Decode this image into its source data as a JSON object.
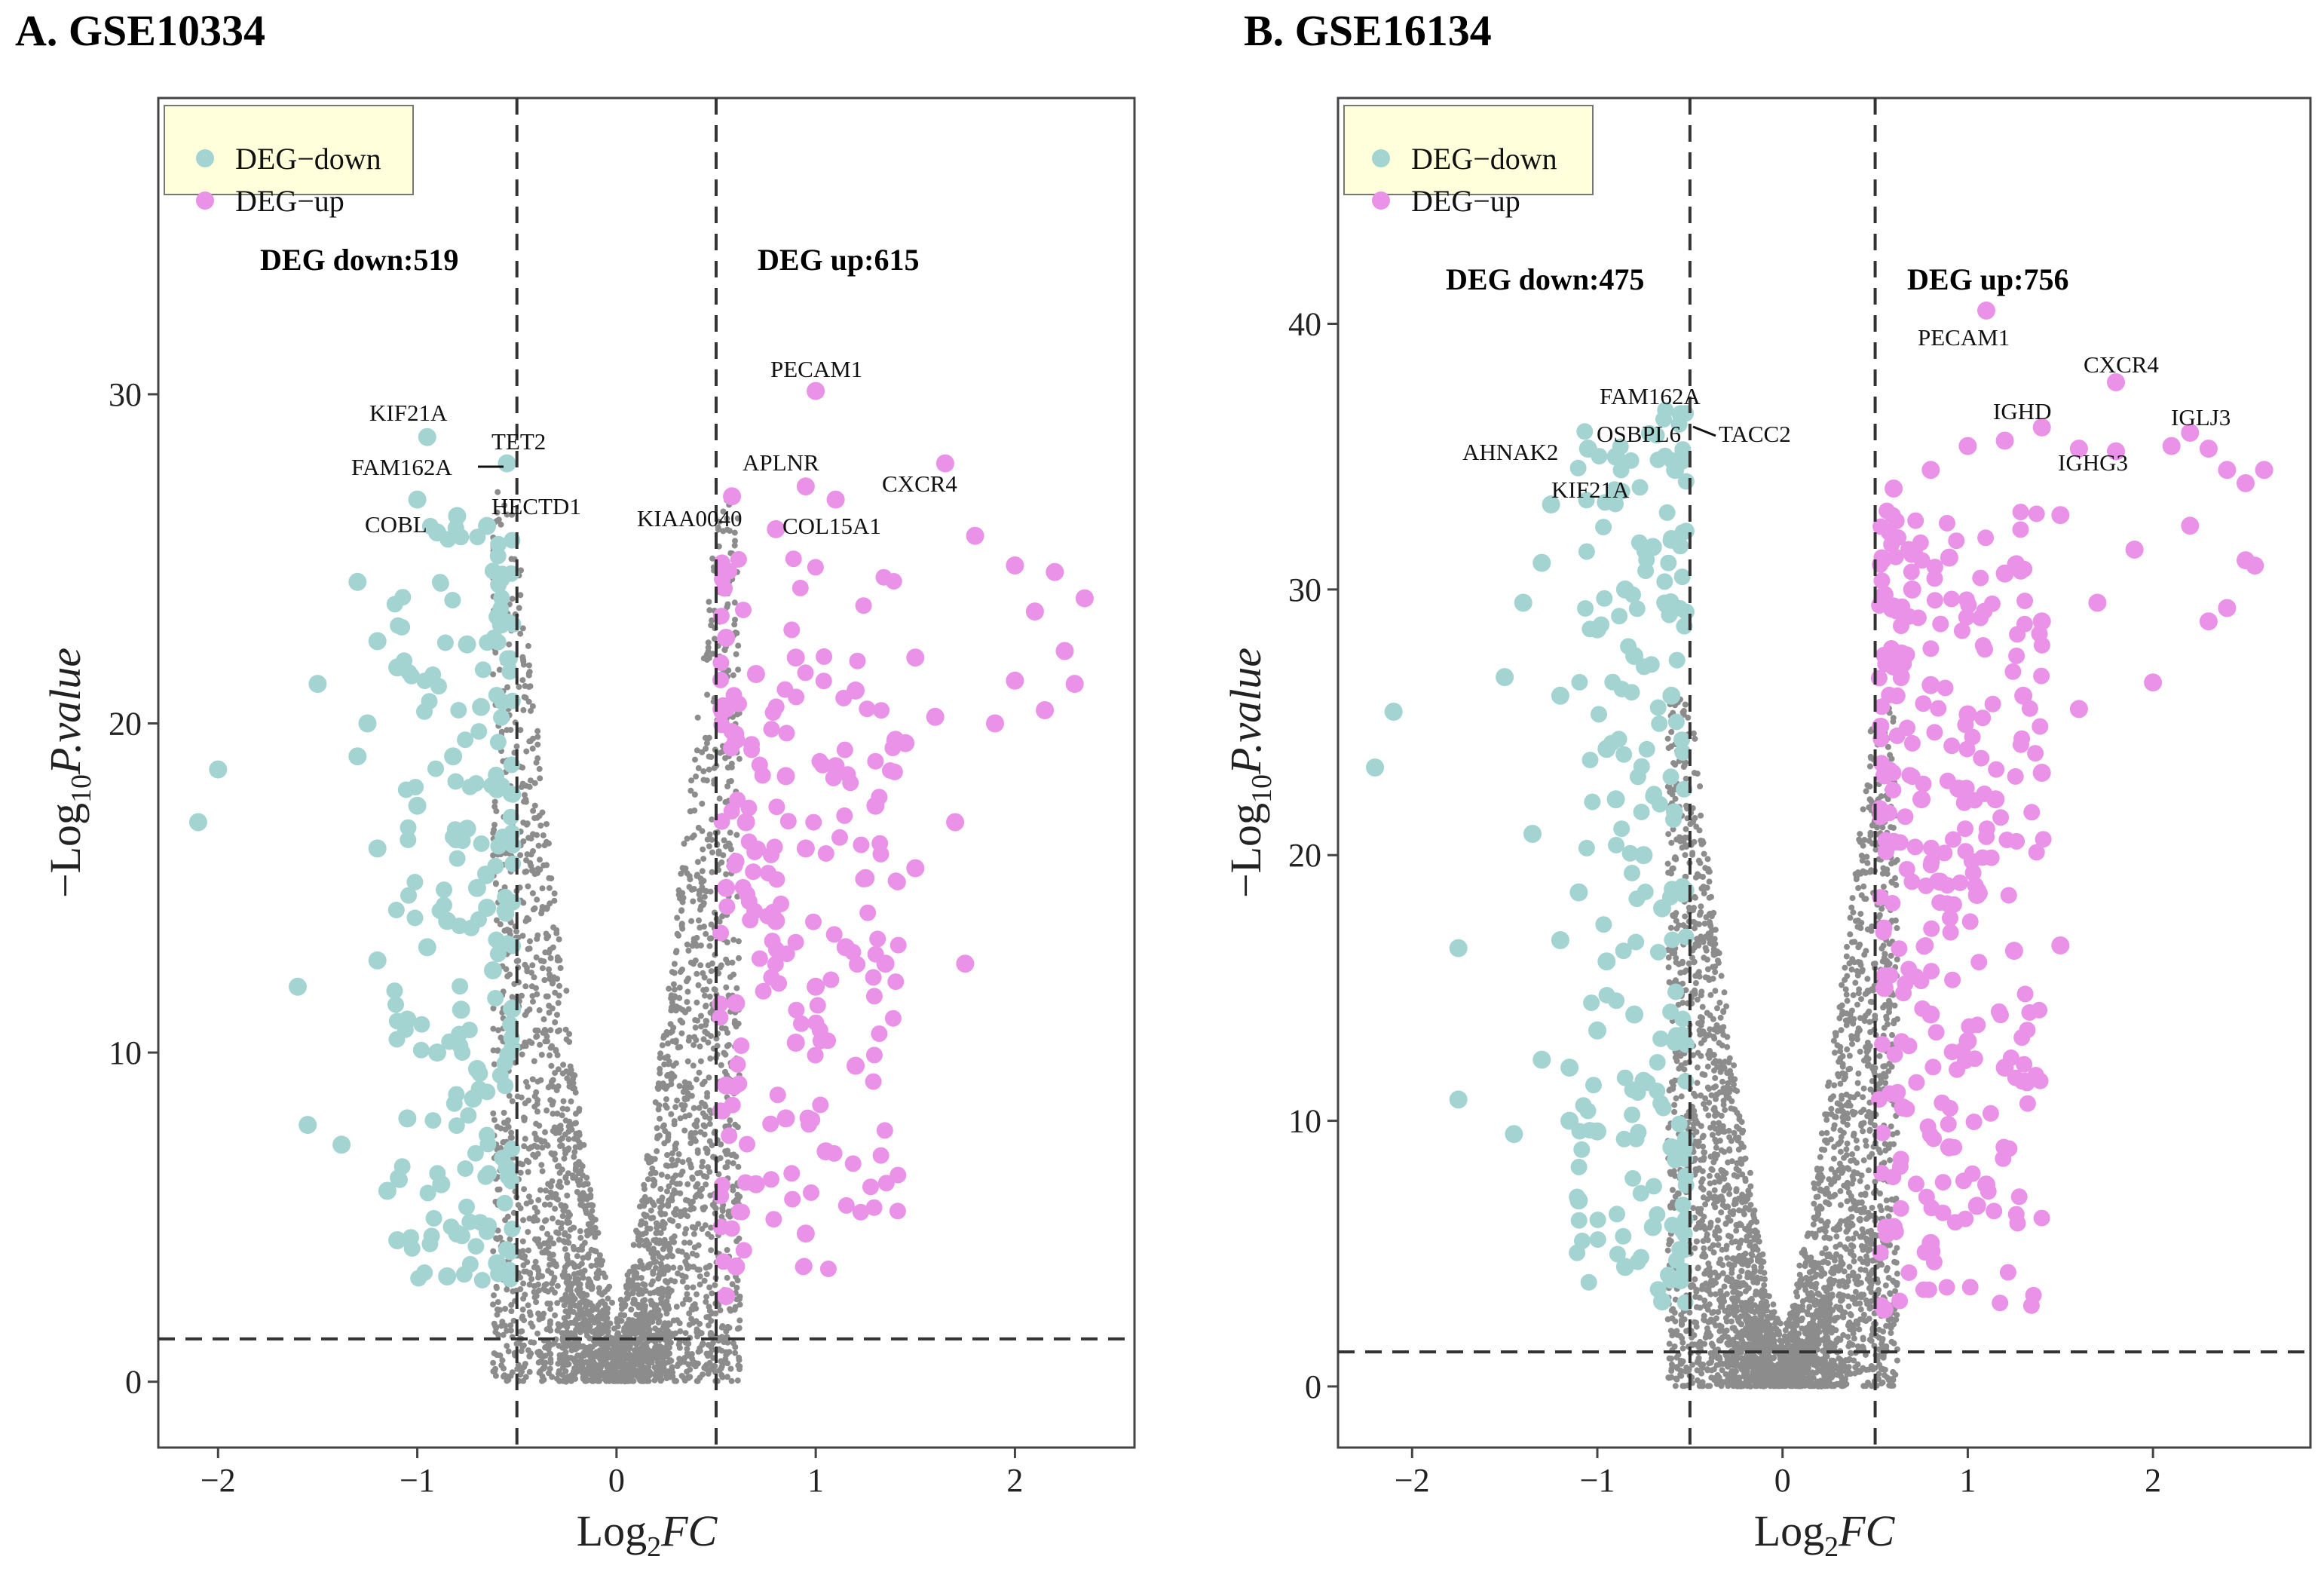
{
  "colors": {
    "down": "#a3d4d2",
    "up": "#ea92e8",
    "ns": "#8c8c8c",
    "legend_bg": "#ffffdc"
  },
  "chart_data": [
    {
      "type": "scatter",
      "title": "A. GSE10334",
      "xlabel": "Log2FC",
      "ylabel": "-Log10P.value",
      "xlim": [
        -2.3,
        2.6
      ],
      "ylim": [
        -2,
        39
      ],
      "xticks": [
        -2,
        -1,
        0,
        1,
        2
      ],
      "yticks": [
        0,
        10,
        20,
        30
      ],
      "thresholds": {
        "logfc": [
          -0.5,
          0.5
        ],
        "neglog10p": 1.3
      },
      "legend": {
        "position": "top-left",
        "entries": [
          "DEG−down",
          "DEG−up"
        ]
      },
      "counts": {
        "down_label": "DEG down:519",
        "up_label": "DEG up:615",
        "down": 519,
        "up": 615
      },
      "series": [
        {
          "name": "DEG−down",
          "points": [
            [
              -2.1,
              17.0
            ],
            [
              -2.0,
              18.6
            ],
            [
              -1.6,
              12.0
            ],
            [
              -1.55,
              7.8
            ],
            [
              -1.5,
              21.2
            ],
            [
              -1.38,
              7.2
            ],
            [
              -1.3,
              19.0
            ],
            [
              -1.25,
              20.0
            ],
            [
              -1.2,
              22.5
            ],
            [
              -1.2,
              16.2
            ],
            [
              -1.15,
              5.8
            ],
            [
              -1.1,
              4.3
            ],
            [
              -1.05,
              8.0
            ],
            [
              -1.0,
              17.5
            ],
            [
              -0.95,
              28.7
            ],
            [
              -0.9,
              25.8
            ],
            [
              -0.88,
              6.0
            ],
            [
              -0.85,
              14.0
            ],
            [
              -0.82,
              19.0
            ],
            [
              -0.8,
              26.3
            ],
            [
              -0.78,
              11.3
            ],
            [
              -0.75,
              22.4
            ],
            [
              -0.72,
              8.6
            ],
            [
              -0.7,
              15.0
            ],
            [
              -0.68,
              20.5
            ],
            [
              -0.65,
              26.0
            ],
            [
              -0.62,
              12.5
            ],
            [
              -0.6,
              18.0
            ],
            [
              -0.58,
              23.0
            ],
            [
              -0.55,
              27.9
            ],
            [
              -0.55,
              6.5
            ],
            [
              -1.3,
              24.3
            ],
            [
              -1.0,
              26.8
            ],
            [
              -0.9,
              10.0
            ],
            [
              -0.85,
              3.2
            ],
            [
              -0.8,
              4.5
            ],
            [
              -1.1,
              21.7
            ],
            [
              -0.95,
              13.2
            ],
            [
              -0.7,
              9.5
            ],
            [
              -0.6,
              3.6
            ],
            [
              -1.2,
              12.8
            ],
            [
              -1.05,
              11.0
            ],
            [
              -0.75,
              16.8
            ],
            [
              -0.65,
              14.4
            ]
          ]
        },
        {
          "name": "DEG−up",
          "points": [
            [
              1.0,
              30.1
            ],
            [
              0.95,
              27.2
            ],
            [
              1.65,
              27.9
            ],
            [
              0.58,
              26.9
            ],
            [
              1.1,
              26.8
            ],
            [
              0.8,
              25.9
            ],
            [
              1.8,
              25.7
            ],
            [
              2.0,
              24.8
            ],
            [
              2.2,
              24.6
            ],
            [
              2.35,
              23.8
            ],
            [
              2.1,
              23.4
            ],
            [
              2.25,
              22.2
            ],
            [
              1.5,
              22.0
            ],
            [
              2.0,
              21.3
            ],
            [
              2.3,
              21.2
            ],
            [
              1.9,
              20.0
            ],
            [
              2.15,
              20.4
            ],
            [
              0.55,
              22.6
            ],
            [
              0.7,
              21.5
            ],
            [
              0.9,
              22.0
            ],
            [
              1.2,
              21.0
            ],
            [
              1.4,
              19.5
            ],
            [
              1.6,
              20.2
            ],
            [
              0.6,
              19.5
            ],
            [
              0.85,
              18.4
            ],
            [
              1.1,
              18.7
            ],
            [
              1.3,
              17.5
            ],
            [
              0.65,
              17.0
            ],
            [
              0.95,
              16.2
            ],
            [
              1.25,
              15.3
            ],
            [
              0.55,
              15.0
            ],
            [
              0.8,
              14.0
            ],
            [
              1.15,
              13.2
            ],
            [
              1.35,
              12.7
            ],
            [
              1.0,
              12.0
            ],
            [
              0.6,
              11.5
            ],
            [
              0.9,
              10.3
            ],
            [
              1.2,
              9.6
            ],
            [
              0.55,
              9.0
            ],
            [
              0.85,
              8.0
            ],
            [
              1.05,
              7.0
            ],
            [
              0.7,
              6.0
            ],
            [
              0.95,
              4.5
            ],
            [
              0.6,
              3.5
            ],
            [
              0.55,
              2.6
            ],
            [
              1.5,
              15.6
            ],
            [
              1.45,
              19.4
            ],
            [
              1.75,
              12.7
            ],
            [
              1.7,
              17.0
            ]
          ]
        },
        {
          "name": "not significant",
          "cloud": {
            "max_neglog10p": 27,
            "count": 2600
          }
        }
      ],
      "annotations": [
        {
          "text": "PECAM1"
        },
        {
          "text": "KIF21A"
        },
        {
          "text": "TET2"
        },
        {
          "text": "FAM162A"
        },
        {
          "text": "APLNR"
        },
        {
          "text": "CXCR4"
        },
        {
          "text": "HECTD1"
        },
        {
          "text": "COBL"
        },
        {
          "text": "KIAA0040"
        },
        {
          "text": "COL15A1"
        }
      ]
    },
    {
      "type": "scatter",
      "title": "B. GSE16134",
      "xlabel": "Log2FC",
      "ylabel": "-Log10P.value",
      "xlim": [
        -2.4,
        2.85
      ],
      "ylim": [
        -2.3,
        48.5
      ],
      "xticks": [
        -2,
        -1,
        0,
        1,
        2
      ],
      "yticks": [
        0,
        10,
        20,
        30,
        40
      ],
      "thresholds": {
        "logfc": [
          -0.5,
          0.5
        ],
        "neglog10p": 1.3
      },
      "legend": {
        "position": "top-left",
        "entries": [
          "DEG−down",
          "DEG−up"
        ]
      },
      "counts": {
        "down_label": "DEG down:475",
        "up_label": "DEG up:756",
        "down": 475,
        "up": 756
      },
      "series": [
        {
          "name": "DEG−down",
          "points": [
            [
              -2.2,
              23.3
            ],
            [
              -2.1,
              25.4
            ],
            [
              -1.75,
              16.5
            ],
            [
              -1.75,
              10.8
            ],
            [
              -1.5,
              26.7
            ],
            [
              -1.45,
              9.5
            ],
            [
              -1.3,
              12.3
            ],
            [
              -1.25,
              33.2
            ],
            [
              -1.2,
              16.8
            ],
            [
              -1.15,
              10.0
            ],
            [
              -1.1,
              7.0
            ],
            [
              -1.05,
              35.3
            ],
            [
              -1.0,
              9.6
            ],
            [
              -0.95,
              24.0
            ],
            [
              -0.9,
              35.0
            ],
            [
              -0.85,
              30.0
            ],
            [
              -0.8,
              14.0
            ],
            [
              -0.75,
              20.0
            ],
            [
              -0.7,
              6.0
            ],
            [
              -0.65,
              3.2
            ],
            [
              -0.6,
              26.0
            ],
            [
              -0.58,
              34.5
            ],
            [
              -0.55,
              36.6
            ],
            [
              -0.55,
              4.0
            ],
            [
              -1.4,
              29.5
            ],
            [
              -1.3,
              31.0
            ],
            [
              -1.2,
              26.0
            ],
            [
              -1.1,
              18.6
            ],
            [
              -1.0,
              13.4
            ],
            [
              -0.9,
              22.1
            ],
            [
              -0.8,
              27.5
            ],
            [
              -0.7,
              31.6
            ],
            [
              -0.6,
              9.0
            ],
            [
              -1.0,
              28.5
            ],
            [
              -0.85,
              4.5
            ],
            [
              -1.35,
              20.8
            ],
            [
              -1.15,
              12.0
            ],
            [
              -0.95,
              16.0
            ],
            [
              -0.75,
              11.5
            ],
            [
              -0.65,
              18.0
            ]
          ]
        },
        {
          "name": "DEG−up",
          "points": [
            [
              1.1,
              40.5
            ],
            [
              1.8,
              37.8
            ],
            [
              2.2,
              35.9
            ],
            [
              2.3,
              35.3
            ],
            [
              2.4,
              34.5
            ],
            [
              2.5,
              34.0
            ],
            [
              2.6,
              34.5
            ],
            [
              2.5,
              31.1
            ],
            [
              2.55,
              30.9
            ],
            [
              2.4,
              29.3
            ],
            [
              2.3,
              28.8
            ],
            [
              2.0,
              26.5
            ],
            [
              1.4,
              36.1
            ],
            [
              1.2,
              35.6
            ],
            [
              1.0,
              35.4
            ],
            [
              1.6,
              35.3
            ],
            [
              1.8,
              35.2
            ],
            [
              0.6,
              33.8
            ],
            [
              0.8,
              34.5
            ],
            [
              1.5,
              32.8
            ],
            [
              1.9,
              31.5
            ],
            [
              2.2,
              32.4
            ],
            [
              0.55,
              29.8
            ],
            [
              0.7,
              30.0
            ],
            [
              0.9,
              31.2
            ],
            [
              1.2,
              30.6
            ],
            [
              1.4,
              28.8
            ],
            [
              1.7,
              29.5
            ],
            [
              0.6,
              27.1
            ],
            [
              0.8,
              26.4
            ],
            [
              1.0,
              25.3
            ],
            [
              1.3,
              26.0
            ],
            [
              1.6,
              25.5
            ],
            [
              0.55,
              23.0
            ],
            [
              0.75,
              22.1
            ],
            [
              0.95,
              22.5
            ],
            [
              1.15,
              22.1
            ],
            [
              1.4,
              23.1
            ],
            [
              0.6,
              20.5
            ],
            [
              0.85,
              19.0
            ],
            [
              1.05,
              18.5
            ],
            [
              1.25,
              16.4
            ],
            [
              1.5,
              16.6
            ],
            [
              0.55,
              15.0
            ],
            [
              0.8,
              14.0
            ],
            [
              1.0,
              13.0
            ],
            [
              1.2,
              12.0
            ],
            [
              0.65,
              10.5
            ],
            [
              0.9,
              9.0
            ],
            [
              1.1,
              7.6
            ],
            [
              0.6,
              6.0
            ],
            [
              0.8,
              5.4
            ],
            [
              0.55,
              2.9
            ],
            [
              1.05,
              6.8
            ],
            [
              2.1,
              35.4
            ]
          ]
        },
        {
          "name": "not significant",
          "cloud": {
            "max_neglog10p": 26,
            "count": 2800
          }
        }
      ],
      "annotations": [
        {
          "text": "PECAM1"
        },
        {
          "text": "CXCR4"
        },
        {
          "text": "IGHD"
        },
        {
          "text": "IGLJ3"
        },
        {
          "text": "IGHG3"
        },
        {
          "text": "FAM162A"
        },
        {
          "text": "OSBPL6"
        },
        {
          "text": "TACC2"
        },
        {
          "text": "AHNAK2"
        },
        {
          "text": "KIF21A"
        }
      ]
    }
  ]
}
